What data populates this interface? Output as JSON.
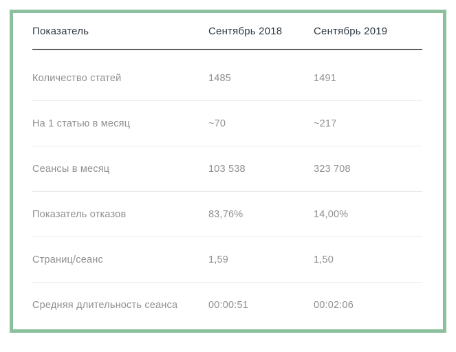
{
  "colors": {
    "frame_border": "#8bbf9d",
    "header_text": "#2e3a45",
    "header_rule": "#5e5e5e",
    "row_divider": "#e9e9e9",
    "row_text": "#8f8f8f"
  },
  "chart_data": {
    "type": "table",
    "columns": [
      "Показатель",
      "Сентябрь 2018",
      "Сентябрь 2019"
    ],
    "rows": [
      [
        "Количество статей",
        "1485",
        "1491"
      ],
      [
        "На 1 статью в месяц",
        "~70",
        "~217"
      ],
      [
        "Сеансы в месяц",
        "103 538",
        "323 708"
      ],
      [
        "Показатель отказов",
        "83,76%",
        "14,00%"
      ],
      [
        "Страниц/сеанс",
        "1,59",
        "1,50"
      ],
      [
        "Средняя длительность сеанса",
        "00:00:51",
        "00:02:06"
      ]
    ]
  }
}
